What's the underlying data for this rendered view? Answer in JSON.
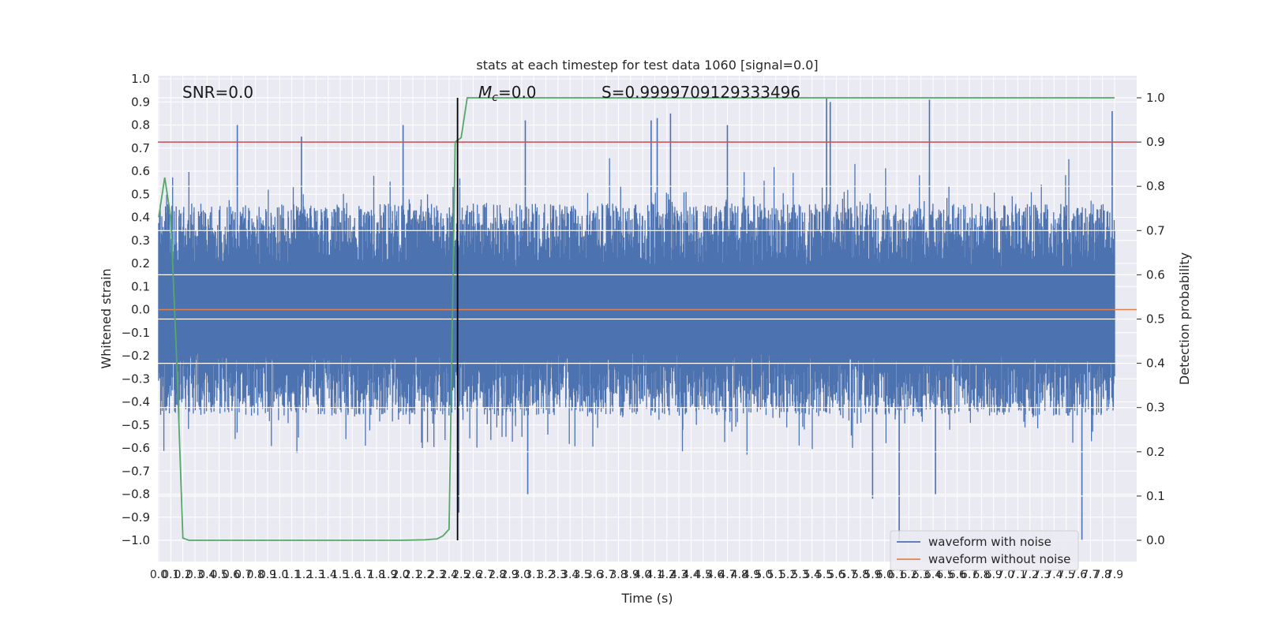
{
  "chart_data": {
    "type": "line",
    "title": "stats at each timestep for test data 1060 [signal=0.0]",
    "xlabel": "Time (s)",
    "ylabel_left": "Whitened strain",
    "ylabel_right": "Detection probability",
    "xlim": [
      0.0,
      7.9
    ],
    "ylim_left": [
      -1.1,
      1.0
    ],
    "ylim_right": [
      -0.05,
      1.05
    ],
    "xticks": [
      "0.0",
      "0.1",
      "0.2",
      "0.3",
      "0.4",
      "0.5",
      "0.6",
      "0.7",
      "0.8",
      "0.9",
      "1.0",
      "1.1",
      "1.2",
      "1.3",
      "1.4",
      "1.5",
      "1.6",
      "1.7",
      "1.8",
      "1.9",
      "2.0",
      "2.1",
      "2.2",
      "2.3",
      "2.4",
      "2.5",
      "2.6",
      "2.7",
      "2.8",
      "2.9",
      "3.0",
      "3.1",
      "3.2",
      "3.3",
      "3.4",
      "3.5",
      "3.6",
      "3.7",
      "3.8",
      "3.9",
      "4.0",
      "4.1",
      "4.2",
      "4.3",
      "4.4",
      "4.5",
      "4.6",
      "4.7",
      "4.8",
      "4.9",
      "5.0",
      "5.1",
      "5.2",
      "5.3",
      "5.4",
      "5.5",
      "5.6",
      "5.7",
      "5.8",
      "5.9",
      "6.0",
      "6.1",
      "6.2",
      "6.3",
      "6.4",
      "6.5",
      "6.6",
      "6.7",
      "6.8",
      "6.9",
      "7.0",
      "7.1",
      "7.2",
      "7.3",
      "7.4",
      "7.5",
      "7.6",
      "7.7",
      "7.8",
      "7.9"
    ],
    "yticks_left": [
      "1.0",
      "0.9",
      "0.8",
      "0.7",
      "0.6",
      "0.5",
      "0.4",
      "0.3",
      "0.2",
      "0.1",
      "0.0",
      "−0.1",
      "−0.2",
      "−0.3",
      "−0.4",
      "−0.5",
      "−0.6",
      "−0.7",
      "−0.8",
      "−0.9",
      "−1.0"
    ],
    "yticks_right": [
      "1.0",
      "0.9",
      "0.8",
      "0.7",
      "0.6",
      "0.5",
      "0.4",
      "0.3",
      "0.2",
      "0.1",
      "0.0"
    ],
    "grid": true,
    "legend_position": "bottom-right",
    "series": [
      {
        "name": "waveform with noise",
        "axis": "left",
        "color": "#4c72b0",
        "kind": "noise",
        "typical_envelope": [
          -0.45,
          0.45
        ],
        "peaks": [
          {
            "t": 0.65,
            "v": 0.8
          },
          {
            "t": 1.18,
            "v": 0.75
          },
          {
            "t": 2.02,
            "v": 0.8
          },
          {
            "t": 2.48,
            "v": -0.88
          },
          {
            "t": 3.03,
            "v": 0.82
          },
          {
            "t": 3.05,
            "v": -0.8
          },
          {
            "t": 4.12,
            "v": 0.83
          },
          {
            "t": 4.23,
            "v": 0.85
          },
          {
            "t": 4.07,
            "v": 0.82
          },
          {
            "t": 5.52,
            "v": 0.92
          },
          {
            "t": 5.55,
            "v": 0.9
          },
          {
            "t": 6.12,
            "v": -1.0
          },
          {
            "t": 6.37,
            "v": 0.91
          },
          {
            "t": 6.42,
            "v": -0.8
          },
          {
            "t": 7.63,
            "v": -1.0
          },
          {
            "t": 7.88,
            "v": 0.86
          },
          {
            "t": 4.7,
            "v": 0.8
          },
          {
            "t": 5.9,
            "v": -0.82
          }
        ]
      },
      {
        "name": "waveform without noise",
        "axis": "left",
        "color": "#dd8452",
        "x": [
          0.0,
          7.9
        ],
        "values": [
          0.0,
          0.0
        ]
      },
      {
        "name": "",
        "axis": "right",
        "color": "#55a868",
        "x": [
          0.0,
          0.05,
          0.1,
          0.15,
          0.2,
          0.25,
          0.3,
          1.0,
          2.0,
          2.2,
          2.3,
          2.35,
          2.4,
          2.45,
          2.5,
          2.55,
          7.9
        ],
        "values": [
          0.73,
          0.82,
          0.73,
          0.4,
          0.005,
          0.0,
          0.0,
          0.0,
          0.0,
          0.001,
          0.003,
          0.01,
          0.025,
          0.9,
          0.91,
          1.0,
          1.0
        ]
      }
    ],
    "threshold_line": {
      "axis": "right",
      "value": 0.9,
      "color": "#c44e52"
    },
    "vertical_line": {
      "x": 2.47,
      "ymin_right": 0.0,
      "ymax_right": 1.0,
      "color": "#000000"
    },
    "annotations": {
      "snr": "SNR=0.0",
      "mc_symbol": "M",
      "mc_subscript": "c",
      "mc_value": "=0.0",
      "s_value": "S=0.9999709129333496"
    },
    "legend": [
      "waveform with noise",
      "waveform without noise"
    ]
  }
}
